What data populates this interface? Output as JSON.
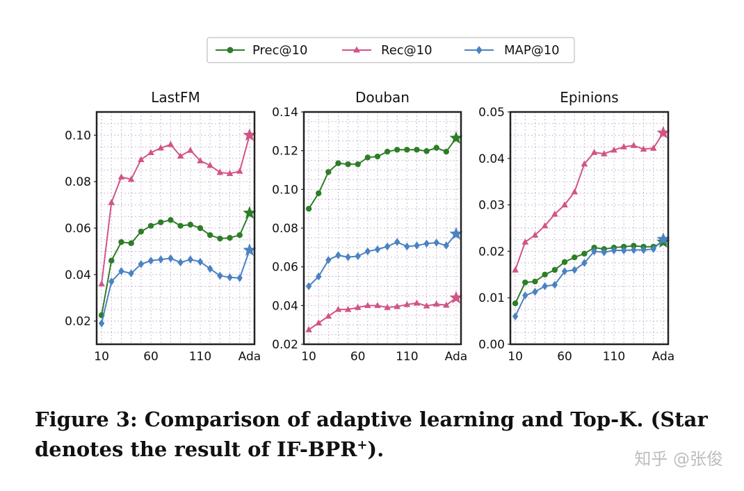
{
  "legend": {
    "entries": [
      {
        "label": "Prec@10",
        "color": "#2e7d27",
        "marker": "circle"
      },
      {
        "label": "Rec@10",
        "color": "#d15486",
        "marker": "triangle"
      },
      {
        "label": "MAP@10",
        "color": "#4a82c3",
        "marker": "diamond"
      }
    ]
  },
  "caption": {
    "text": "Figure 3: Comparison of adaptive learning and Top-K. (Star denotes the result of IF-BPR",
    "superscript": "+",
    "suffix": ")."
  },
  "watermark": "知乎 @张俊",
  "chart_data": [
    {
      "type": "line",
      "title": "LastFM",
      "x_ticks": [
        "10",
        "60",
        "110",
        "Ada"
      ],
      "x_ticks_at": [
        10,
        60,
        110,
        160
      ],
      "ylim": [
        0.01,
        0.11
      ],
      "y_ticks": [
        0.02,
        0.04,
        0.06,
        0.08,
        0.1
      ],
      "y_tick_labels": [
        "0.02",
        "0.04",
        "0.06",
        "0.08",
        "0.10"
      ],
      "grid": true,
      "x": [
        10,
        20,
        30,
        40,
        50,
        60,
        70,
        80,
        90,
        100,
        110,
        120,
        130,
        140,
        150
      ],
      "ada_marker": "star",
      "series": [
        {
          "name": "Prec@10",
          "values": [
            0.0225,
            0.046,
            0.054,
            0.0535,
            0.0585,
            0.061,
            0.0625,
            0.0635,
            0.061,
            0.0615,
            0.06,
            0.057,
            0.0555,
            0.0558,
            0.057
          ],
          "ada": 0.0665
        },
        {
          "name": "Rec@10",
          "values": [
            0.036,
            0.071,
            0.082,
            0.081,
            0.0895,
            0.0925,
            0.0945,
            0.096,
            0.091,
            0.0935,
            0.089,
            0.087,
            0.084,
            0.0835,
            0.0845
          ],
          "ada": 0.1
        },
        {
          "name": "MAP@10",
          "values": [
            0.019,
            0.037,
            0.0415,
            0.0405,
            0.0445,
            0.046,
            0.0465,
            0.047,
            0.0452,
            0.0465,
            0.0455,
            0.0425,
            0.0395,
            0.0388,
            0.0385
          ],
          "ada": 0.0505
        }
      ]
    },
    {
      "type": "line",
      "title": "Douban",
      "x_ticks": [
        "10",
        "60",
        "110",
        "Ada"
      ],
      "x_ticks_at": [
        10,
        60,
        110,
        160
      ],
      "ylim": [
        0.02,
        0.14
      ],
      "y_ticks": [
        0.02,
        0.04,
        0.06,
        0.08,
        0.1,
        0.12,
        0.14
      ],
      "y_tick_labels": [
        "0.02",
        "0.04",
        "0.06",
        "0.08",
        "0.10",
        "0.12",
        "0.14"
      ],
      "grid": true,
      "x": [
        10,
        20,
        30,
        40,
        50,
        60,
        70,
        80,
        90,
        100,
        110,
        120,
        130,
        140,
        150
      ],
      "ada_marker": "star",
      "series": [
        {
          "name": "Prec@10",
          "values": [
            0.09,
            0.098,
            0.109,
            0.1135,
            0.113,
            0.113,
            0.1165,
            0.117,
            0.1195,
            0.1205,
            0.1205,
            0.1205,
            0.1198,
            0.1215,
            0.1195
          ],
          "ada": 0.1265
        },
        {
          "name": "Rec@10",
          "values": [
            0.0275,
            0.031,
            0.0345,
            0.038,
            0.038,
            0.039,
            0.04,
            0.04,
            0.039,
            0.0395,
            0.0405,
            0.0413,
            0.0398,
            0.0408,
            0.0402
          ],
          "ada": 0.044
        },
        {
          "name": "MAP@10",
          "values": [
            0.05,
            0.055,
            0.0635,
            0.066,
            0.065,
            0.0655,
            0.068,
            0.069,
            0.0705,
            0.0728,
            0.0705,
            0.071,
            0.072,
            0.0725,
            0.071
          ],
          "ada": 0.077
        }
      ]
    },
    {
      "type": "line",
      "title": "Epinions",
      "x_ticks": [
        "10",
        "60",
        "110",
        "Ada"
      ],
      "x_ticks_at": [
        10,
        60,
        110,
        160
      ],
      "ylim": [
        0.0,
        0.05
      ],
      "y_ticks": [
        0.0,
        0.01,
        0.02,
        0.03,
        0.04,
        0.05
      ],
      "y_tick_labels": [
        "0.00",
        "0.01",
        "0.02",
        "0.03",
        "0.04",
        "0.05"
      ],
      "grid": true,
      "x": [
        10,
        20,
        30,
        40,
        50,
        60,
        70,
        80,
        90,
        100,
        110,
        120,
        130,
        140,
        150
      ],
      "ada_marker": "star",
      "series": [
        {
          "name": "Prec@10",
          "values": [
            0.0088,
            0.0133,
            0.0135,
            0.015,
            0.016,
            0.0177,
            0.0187,
            0.0195,
            0.0208,
            0.0205,
            0.0208,
            0.021,
            0.0212,
            0.021,
            0.021
          ],
          "ada": 0.022
        },
        {
          "name": "Rec@10",
          "values": [
            0.016,
            0.022,
            0.0235,
            0.0255,
            0.028,
            0.03,
            0.0328,
            0.0388,
            0.0413,
            0.041,
            0.0418,
            0.0425,
            0.0428,
            0.042,
            0.0422
          ],
          "ada": 0.0455
        },
        {
          "name": "MAP@10",
          "values": [
            0.006,
            0.0105,
            0.0113,
            0.0125,
            0.0128,
            0.0157,
            0.016,
            0.0175,
            0.02,
            0.0198,
            0.0202,
            0.0202,
            0.0203,
            0.0203,
            0.0205
          ],
          "ada": 0.0226
        }
      ]
    }
  ]
}
